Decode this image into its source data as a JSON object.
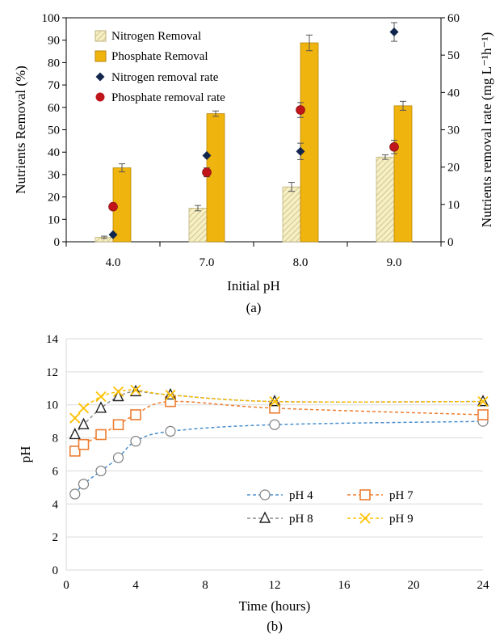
{
  "chart_data": [
    {
      "type": "bar",
      "panel_label": "(a)",
      "categories": [
        "4.0",
        "7.0",
        "8.0",
        "9.0"
      ],
      "xlabel": "Initial pH",
      "ylabel": "Nutrients Removal (%)",
      "ylabel_right": "Nutrients removal rate (mg L⁻¹h⁻¹)",
      "ylim": [
        0,
        100
      ],
      "yticks": [
        "0",
        "10",
        "20",
        "30",
        "40",
        "50",
        "60",
        "70",
        "80",
        "90",
        "100"
      ],
      "ylim_right": [
        0,
        60
      ],
      "yticks_right": [
        "0",
        "10",
        "20",
        "30",
        "40",
        "50",
        "60"
      ],
      "legend_position": "top-left",
      "series": [
        {
          "name": "Nitrogen Removal",
          "kind": "bar",
          "axis": "left",
          "color": "#f4eec4",
          "hatch": "#c9b679",
          "values": [
            2,
            15,
            24.5,
            37.8
          ],
          "errors": [
            0.5,
            1.2,
            2.0,
            1.0
          ]
        },
        {
          "name": "Phosphate Removal",
          "kind": "bar",
          "axis": "left",
          "color": "#f0b40e",
          "values": [
            33,
            57.2,
            88.8,
            60.7
          ],
          "errors": [
            1.8,
            1.2,
            3.5,
            2.0
          ]
        },
        {
          "name": "Nitrogen removal rate",
          "kind": "point",
          "axis": "right",
          "color": "#12264d",
          "marker": "diamond",
          "values": [
            1.9,
            23.1,
            24.2,
            56.2
          ],
          "errors": [
            0,
            0,
            2.2,
            2.5
          ]
        },
        {
          "name": "Phosphate removal rate",
          "kind": "point",
          "axis": "right",
          "color": "#c0151b",
          "marker": "circle",
          "values": [
            9.4,
            18.6,
            35.3,
            25.4
          ],
          "errors": [
            0,
            1.2,
            2.0,
            1.8
          ]
        }
      ]
    },
    {
      "type": "line",
      "panel_label": "(b)",
      "xlabel": "Time (hours)",
      "ylabel": "pH",
      "xlim": [
        0,
        24
      ],
      "ylim": [
        0,
        14
      ],
      "xticks": [
        "0",
        "4",
        "8",
        "12",
        "16",
        "20",
        "24"
      ],
      "yticks": [
        "0",
        "2",
        "4",
        "6",
        "8",
        "10",
        "12",
        "14"
      ],
      "legend_position": "center-right",
      "series": [
        {
          "name": "pH 4",
          "color": "#4a8fcf",
          "marker": "circle",
          "x": [
            0.5,
            1,
            2,
            3,
            4,
            6,
            12,
            24
          ],
          "y": [
            4.6,
            5.2,
            6.0,
            6.8,
            7.8,
            8.4,
            8.8,
            9.0
          ]
        },
        {
          "name": "pH 7",
          "color": "#ed7d31",
          "marker": "square",
          "x": [
            0.5,
            1,
            2,
            3,
            4,
            6,
            12,
            24
          ],
          "y": [
            7.2,
            7.6,
            8.2,
            8.8,
            9.4,
            10.2,
            9.8,
            9.4
          ]
        },
        {
          "name": "pH 8",
          "color": "#8c8c8c",
          "marker": "triangle",
          "x": [
            0.5,
            1,
            2,
            3,
            4,
            6,
            12,
            24
          ],
          "y": [
            8.2,
            8.8,
            9.8,
            10.5,
            10.8,
            10.6,
            10.2,
            10.2
          ]
        },
        {
          "name": "pH 9",
          "color": "#ffc000",
          "marker": "x",
          "x": [
            0.5,
            1,
            2,
            3,
            4,
            6,
            12,
            24
          ],
          "y": [
            9.2,
            9.8,
            10.5,
            10.8,
            10.9,
            10.6,
            10.2,
            10.2
          ]
        }
      ]
    }
  ]
}
